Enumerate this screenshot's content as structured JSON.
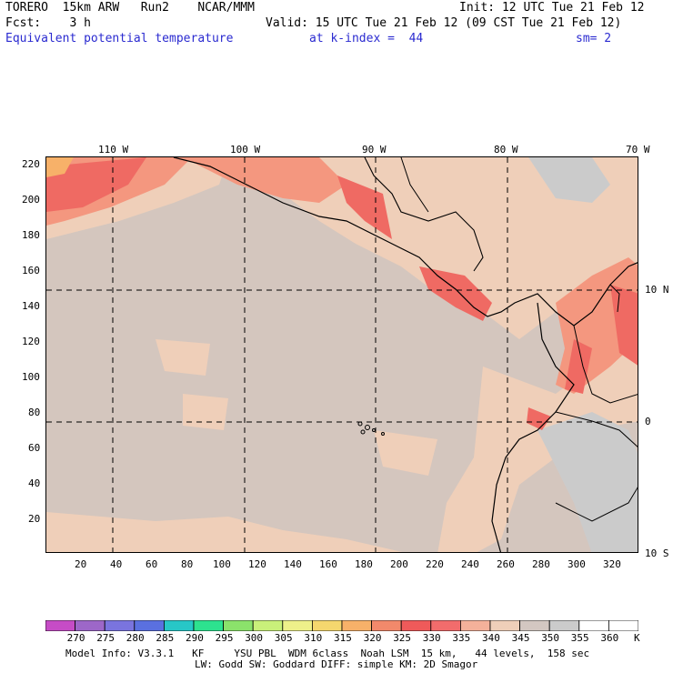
{
  "header": {
    "title": "TORERO  15km ARW   Run2    NCAR/MMM",
    "init": "Init: 12 UTC Tue 21 Feb 12",
    "fcst": "Fcst:    3 h",
    "valid": "Valid: 15 UTC Tue 21 Feb 12 (09 CST Tue 21 Feb 12)",
    "field": "Equivalent potential temperature",
    "level": "at k-index =  44",
    "smooth": "sm= 2"
  },
  "map": {
    "lon_labels": [
      "110 W",
      "100 W",
      "90 W",
      "80 W",
      "70 W"
    ],
    "lat_labels": [
      "10 N",
      "0",
      "10 S"
    ],
    "y_ticks": [
      "220",
      "200",
      "180",
      "160",
      "140",
      "120",
      "100",
      "80",
      "60",
      "40",
      "20"
    ],
    "x_ticks": [
      "20",
      "40",
      "60",
      "80",
      "100",
      "120",
      "140",
      "160",
      "180",
      "200",
      "220",
      "240",
      "260",
      "280",
      "300",
      "320"
    ]
  },
  "colorbar": {
    "labels": [
      "270",
      "275",
      "280",
      "285",
      "290",
      "295",
      "300",
      "305",
      "310",
      "315",
      "320",
      "325",
      "330",
      "335",
      "340",
      "345",
      "350",
      "355",
      "360"
    ],
    "unit": "K",
    "colors": [
      "#c64cc6",
      "#9d67c8",
      "#7a74de",
      "#5a70e0",
      "#27c7c7",
      "#2de28f",
      "#8be26b",
      "#c9f07a",
      "#eef08a",
      "#f5d76e",
      "#f7b169",
      "#f2896b",
      "#ef5a5a",
      "#f26c6c",
      "#f4b19a",
      "#efcfb9",
      "#d3c7c1",
      "#cbcbcb",
      "#ffffff",
      "#ffffff"
    ]
  },
  "footer": {
    "line1": "Model Info: V3.3.1   KF     YSU PBL  WDM 6class  Noah LSM  15 km,   44 levels,  158 sec",
    "line2": "LW: Godd SW: Goddard DIFF: simple KM: 2D Smagor"
  }
}
